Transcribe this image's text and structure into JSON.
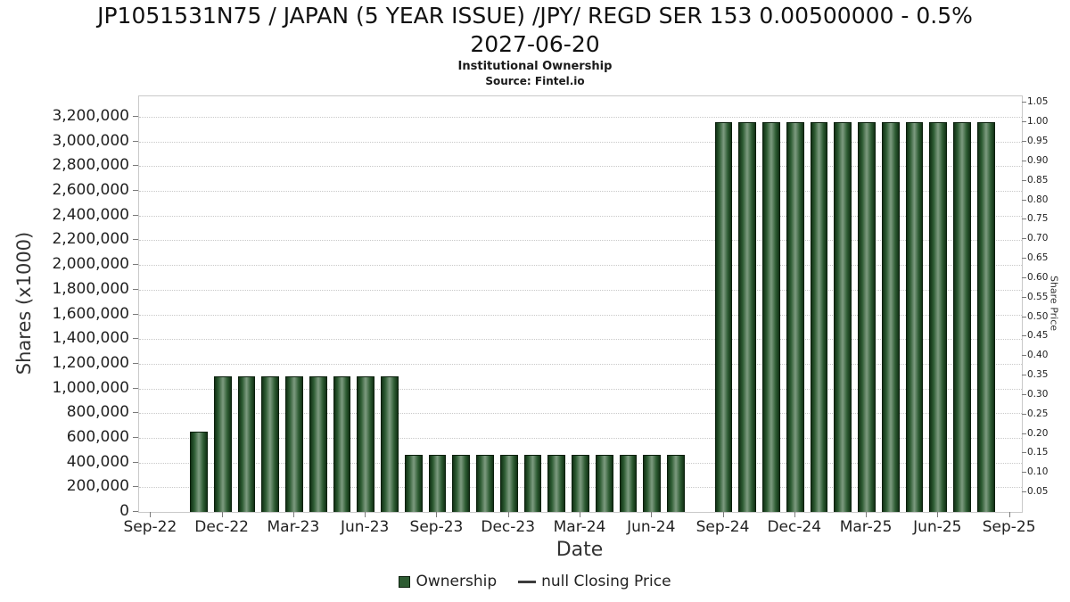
{
  "header": {
    "title_line1": "JP1051531N75 / JAPAN (5 YEAR ISSUE) /JPY/ REGD SER 153 0.00500000 - 0.5%",
    "title_line2": "2027-06-20",
    "subtitle": "Institutional Ownership",
    "source": "Source: Fintel.io"
  },
  "colors": {
    "bar_dark": "#113014",
    "bar_mid": "#2e5c33",
    "bar_light": "#7d9b80",
    "bar_border": "#0a1f0c",
    "grid": "#c9c9c9",
    "legend_line": "#3c3c3c"
  },
  "chart_data": {
    "type": "bar",
    "title": "JP1051531N75 / JAPAN (5 YEAR ISSUE) /JPY/ REGD SER 153 0.00500000 - 0.5% 2027-06-20",
    "subtitle": "Institutional Ownership",
    "source": "Source: Fintel.io",
    "xlabel": "Date",
    "ylabel_left": "Shares (x1000)",
    "ylabel_right": "Share Price",
    "legend_ownership": "Ownership",
    "legend_price": "null Closing Price",
    "legend_position": "bottom",
    "grid": true,
    "x_axis": {
      "tick_labels": [
        "Sep-22",
        "Dec-22",
        "Mar-23",
        "Jun-23",
        "Sep-23",
        "Dec-23",
        "Mar-24",
        "Jun-24",
        "Sep-24",
        "Dec-24",
        "Mar-25",
        "Jun-25",
        "Sep-25"
      ],
      "tick_month_offsets": [
        0,
        3,
        6,
        9,
        12,
        15,
        18,
        21,
        24,
        27,
        30,
        33,
        36
      ],
      "months_span": 37
    },
    "y_axis_left": {
      "min": 0,
      "max": 3366667,
      "tick_step": 200000,
      "tick_max": 3200000
    },
    "y_axis_right": {
      "min": 0.05,
      "max": 1.05,
      "step": 0.05,
      "scale_max": 1.0667
    },
    "series": [
      {
        "name": "Ownership",
        "type": "bar",
        "units": "shares (x1000)",
        "points": [
          {
            "month": "Nov-22",
            "t": 2,
            "shares_x1000": 650000
          },
          {
            "month": "Dec-22",
            "t": 3,
            "shares_x1000": 1100000
          },
          {
            "month": "Jan-23",
            "t": 4,
            "shares_x1000": 1100000
          },
          {
            "month": "Feb-23",
            "t": 5,
            "shares_x1000": 1100000
          },
          {
            "month": "Mar-23",
            "t": 6,
            "shares_x1000": 1100000
          },
          {
            "month": "Apr-23",
            "t": 7,
            "shares_x1000": 1100000
          },
          {
            "month": "May-23",
            "t": 8,
            "shares_x1000": 1100000
          },
          {
            "month": "Jun-23",
            "t": 9,
            "shares_x1000": 1100000
          },
          {
            "month": "Jul-23",
            "t": 10,
            "shares_x1000": 1100000
          },
          {
            "month": "Aug-23",
            "t": 11,
            "shares_x1000": 460000
          },
          {
            "month": "Sep-23",
            "t": 12,
            "shares_x1000": 460000
          },
          {
            "month": "Oct-23",
            "t": 13,
            "shares_x1000": 460000
          },
          {
            "month": "Nov-23",
            "t": 14,
            "shares_x1000": 460000
          },
          {
            "month": "Dec-23",
            "t": 15,
            "shares_x1000": 460000
          },
          {
            "month": "Jan-24",
            "t": 16,
            "shares_x1000": 460000
          },
          {
            "month": "Feb-24",
            "t": 17,
            "shares_x1000": 460000
          },
          {
            "month": "Mar-24",
            "t": 18,
            "shares_x1000": 460000
          },
          {
            "month": "Apr-24",
            "t": 19,
            "shares_x1000": 460000
          },
          {
            "month": "May-24",
            "t": 20,
            "shares_x1000": 460000
          },
          {
            "month": "Jun-24",
            "t": 21,
            "shares_x1000": 460000
          },
          {
            "month": "Jul-24",
            "t": 22,
            "shares_x1000": 460000
          },
          {
            "month": "Sep-24",
            "t": 24,
            "shares_x1000": 3160000
          },
          {
            "month": "Oct-24",
            "t": 25,
            "shares_x1000": 3160000
          },
          {
            "month": "Nov-24",
            "t": 26,
            "shares_x1000": 3160000
          },
          {
            "month": "Dec-24",
            "t": 27,
            "shares_x1000": 3160000
          },
          {
            "month": "Jan-25",
            "t": 28,
            "shares_x1000": 3160000
          },
          {
            "month": "Feb-25",
            "t": 29,
            "shares_x1000": 3160000
          },
          {
            "month": "Mar-25",
            "t": 30,
            "shares_x1000": 3160000
          },
          {
            "month": "Apr-25",
            "t": 31,
            "shares_x1000": 3160000
          },
          {
            "month": "May-25",
            "t": 32,
            "shares_x1000": 3160000
          },
          {
            "month": "Jun-25",
            "t": 33,
            "shares_x1000": 3160000
          },
          {
            "month": "Jul-25",
            "t": 34,
            "shares_x1000": 3160000
          },
          {
            "month": "Aug-25",
            "t": 35,
            "shares_x1000": 3160000
          }
        ]
      },
      {
        "name": "null Closing Price",
        "type": "line",
        "points": []
      }
    ]
  }
}
